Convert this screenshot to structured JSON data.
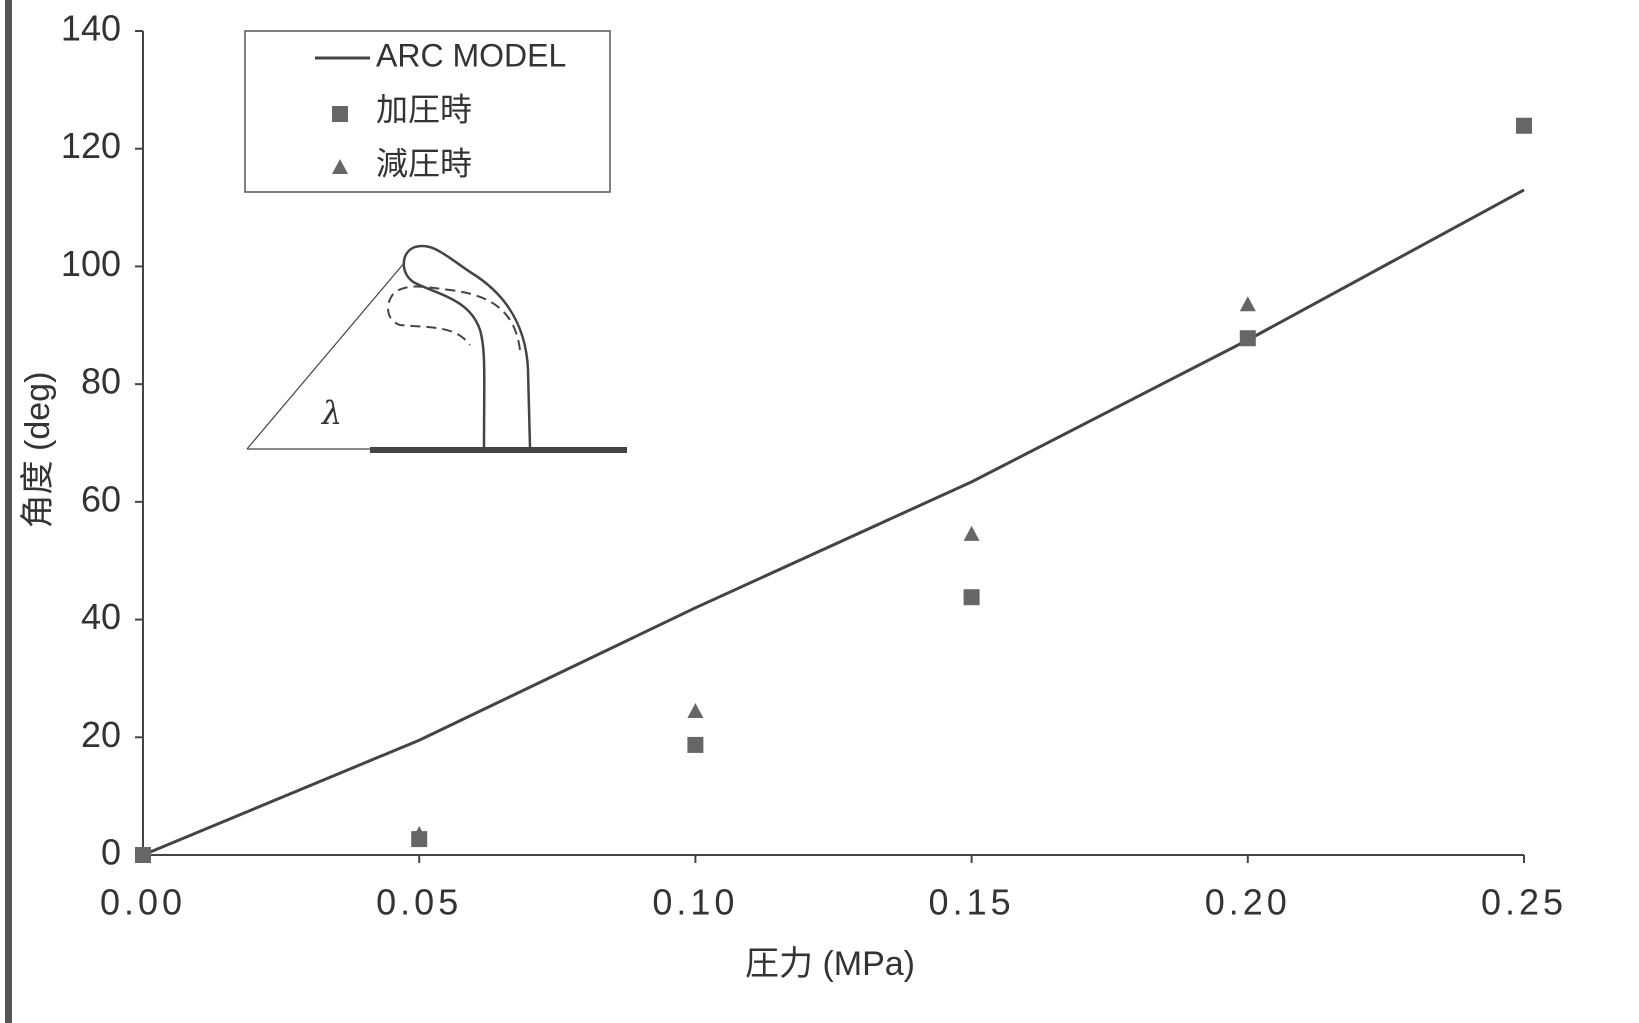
{
  "chart_data": {
    "type": "scatter",
    "xlabel": "圧力 (MPa)",
    "ylabel": "角度 (deg)",
    "xlim": [
      0,
      0.25
    ],
    "ylim": [
      0,
      140
    ],
    "xticks": [
      {
        "value": 0,
        "label": "0.00"
      },
      {
        "value": 0.05,
        "label": "0.05"
      },
      {
        "value": 0.1,
        "label": "0.10"
      },
      {
        "value": 0.15,
        "label": "0.15"
      },
      {
        "value": 0.2,
        "label": "0.20"
      },
      {
        "value": 0.25,
        "label": "0.25"
      }
    ],
    "yticks": [
      0,
      20,
      40,
      60,
      80,
      100,
      120,
      140
    ],
    "grid": false,
    "legend": "upper left",
    "annotation": "λ",
    "series": [
      {
        "name": "ARC MODEL",
        "marker": "line",
        "color": "#444444",
        "x": [
          0,
          0.05,
          0.1,
          0.15,
          0.2,
          0.25
        ],
        "values": [
          0,
          19.5,
          42,
          63.4,
          87.5,
          113
        ]
      },
      {
        "name": "加圧時",
        "marker": "square",
        "color": "#666666",
        "x": [
          0,
          0.05,
          0.1,
          0.15,
          0.2,
          0.25
        ],
        "values": [
          0,
          2.7,
          18.7,
          43.8,
          87.8,
          123.9
        ]
      },
      {
        "name": "減圧時",
        "marker": "triangle",
        "color": "#666666",
        "x": [
          0.05,
          0.1,
          0.15,
          0.2
        ],
        "values": [
          3.4,
          24.3,
          54.4,
          93.4
        ]
      }
    ]
  }
}
